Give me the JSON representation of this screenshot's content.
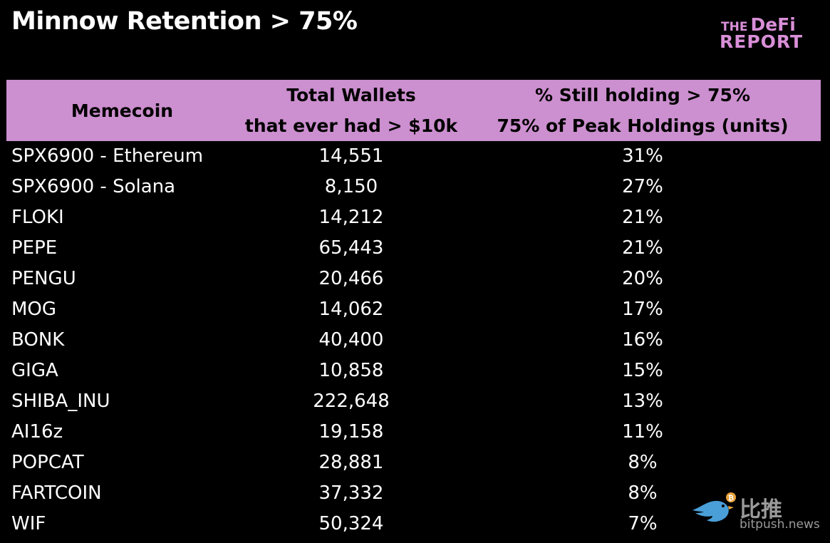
{
  "title": "Minnow Retention > 75%",
  "logo": {
    "line1_small": "THE",
    "line1_big": "DeFi",
    "line2": "REPORT"
  },
  "watermark": {
    "zh": "比推",
    "en": "bitpush.news"
  },
  "chart_data": {
    "type": "table",
    "title": "Minnow Retention > 75%",
    "columns": [
      {
        "lines": [
          "Memecoin"
        ]
      },
      {
        "lines": [
          "Total Wallets",
          "that ever had > $10k"
        ]
      },
      {
        "lines": [
          "% Still holding > 75%",
          "75% of Peak Holdings (units)"
        ]
      }
    ],
    "rows": [
      [
        "SPX6900 - Ethereum",
        "14,551",
        "31%"
      ],
      [
        "SPX6900 - Solana",
        "8,150",
        "27%"
      ],
      [
        "FLOKI",
        "14,212",
        "21%"
      ],
      [
        "PEPE",
        "65,443",
        "21%"
      ],
      [
        "PENGU",
        "20,466",
        "20%"
      ],
      [
        "MOG",
        "14,062",
        "17%"
      ],
      [
        "BONK",
        "40,400",
        "16%"
      ],
      [
        "GIGA",
        "10,858",
        "15%"
      ],
      [
        "SHIBA_INU",
        "222,648",
        "13%"
      ],
      [
        "AI16z",
        "19,158",
        "11%"
      ],
      [
        "POPCAT",
        "28,881",
        "8%"
      ],
      [
        "FARTCOIN",
        "37,332",
        "8%"
      ],
      [
        "WIF",
        "50,324",
        "7%"
      ]
    ],
    "colors": {
      "header_bg": "#cc8fcf",
      "header_text": "#000000",
      "body_bg": "#000000",
      "body_text": "#ffffff",
      "logo": "#d98fd8"
    }
  }
}
